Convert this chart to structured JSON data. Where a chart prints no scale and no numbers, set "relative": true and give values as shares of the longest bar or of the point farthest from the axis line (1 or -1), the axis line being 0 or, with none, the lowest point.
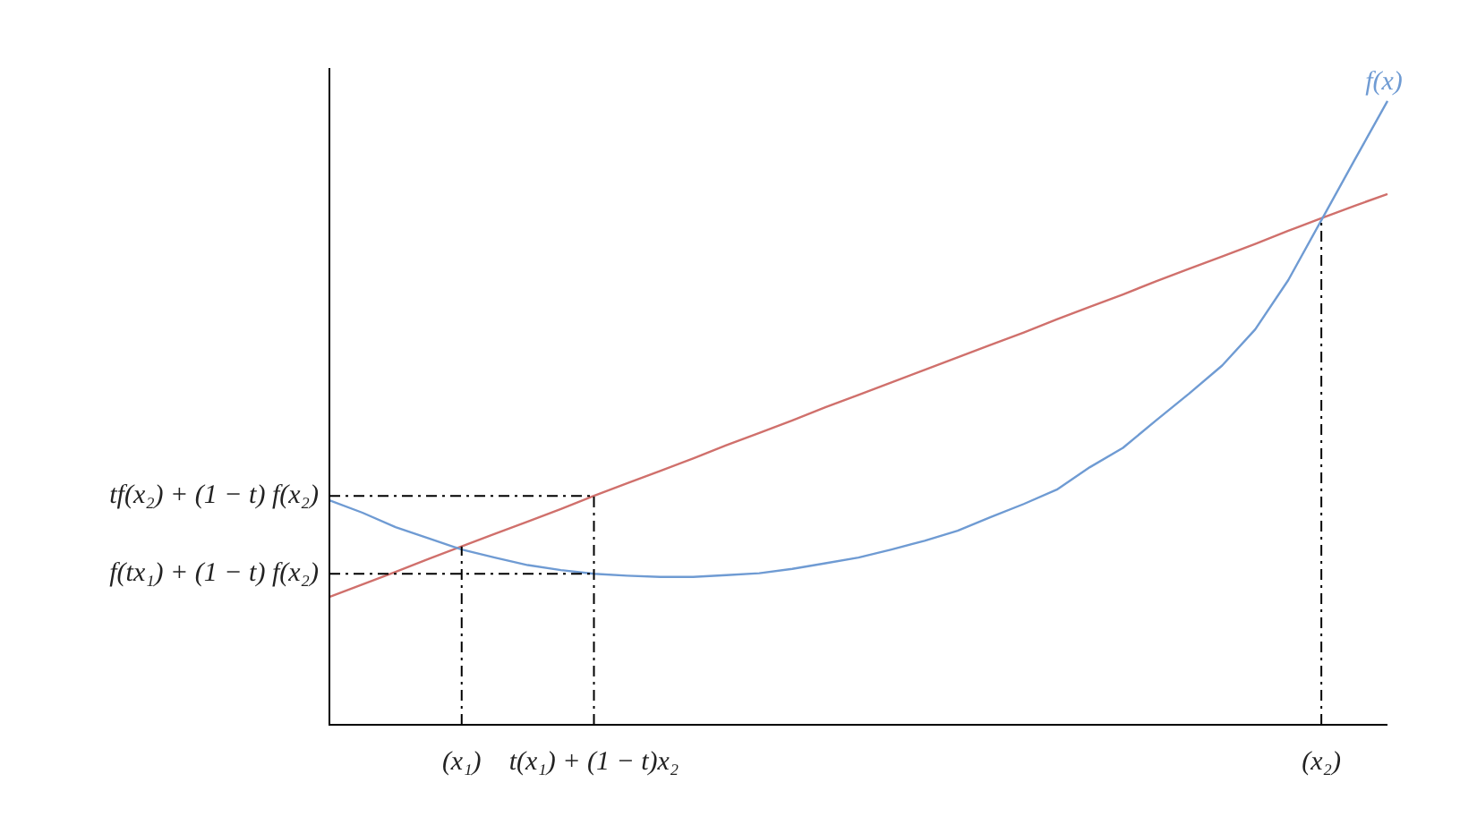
{
  "chart_data": {
    "type": "line",
    "relative": true,
    "legend": false,
    "tick_labels": "x",
    "marker": "none",
    "line_style": "solid",
    "categories": [
      null,
      null,
      null,
      null,
      "(x₁)",
      null,
      null,
      null,
      "t(x₁) + (1 − t)x₂",
      null,
      null,
      null,
      null,
      null,
      null,
      null,
      null,
      null,
      null,
      null,
      null,
      null,
      null,
      null,
      null,
      null,
      null,
      null,
      null,
      null,
      "(x₂)",
      null,
      null
    ],
    "series": [
      {
        "name": "f(x)",
        "color": "#6f9bd3",
        "values": [
          0.36,
          0.34,
          0.317,
          0.299,
          0.281,
          0.268,
          0.256,
          0.248,
          0.242,
          0.239,
          0.237,
          0.237,
          0.24,
          0.243,
          0.25,
          0.259,
          0.268,
          0.281,
          0.295,
          0.311,
          0.333,
          0.354,
          0.377,
          0.413,
          0.444,
          0.488,
          0.531,
          0.576,
          0.634,
          0.713,
          0.809,
          0.905,
          1
        ]
      },
      {
        "color": "#d0706c",
        "values": [
          0.205,
          0.225,
          0.245,
          0.266,
          0.286,
          0.306,
          0.326,
          0.346,
          0.367,
          0.387,
          0.407,
          0.427,
          0.448,
          0.468,
          0.488,
          0.509,
          0.529,
          0.549,
          0.569,
          0.589,
          0.609,
          0.629,
          0.65,
          0.67,
          0.69,
          0.711,
          0.731,
          0.751,
          0.771,
          0.792,
          0.812,
          0.832,
          0.851
        ]
      }
    ],
    "ref_lines": [
      {
        "axis": "x",
        "value": "(x₁)",
        "line_style": "dashdot",
        "color": "#000000"
      },
      {
        "axis": "x",
        "value": "t(x₁) + (1 − t)x₂",
        "line_style": "dashdot",
        "color": "#000000"
      },
      {
        "axis": "x",
        "value": "(x₂)",
        "line_style": "dashdot",
        "color": "#000000"
      },
      {
        "axis": "y",
        "value": 0.367,
        "label": "tf(x₂) + (1 − t) f(x₂)",
        "line_style": "dashdot",
        "color": "#000000"
      },
      {
        "axis": "y",
        "value": 0.242,
        "label": "f(tx₁) + (1 − t) f(x₂)",
        "line_style": "dashdot",
        "color": "#000000"
      }
    ]
  }
}
